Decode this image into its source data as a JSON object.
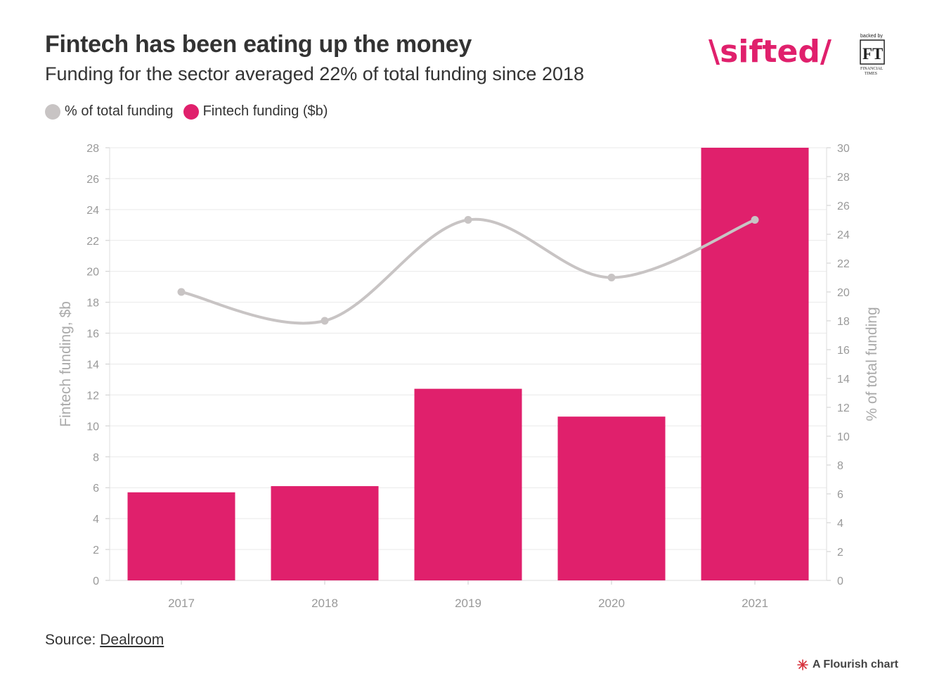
{
  "header": {
    "title": "Fintech has been eating up the money",
    "subtitle": "Funding for the sector averaged 22% of total funding since 2018"
  },
  "brand": {
    "logo_text": "\\sifted/",
    "backed_by": "backed by",
    "ft_mark": "FT",
    "ft_name_line1": "FINANCIAL",
    "ft_name_line2": "TIMES"
  },
  "legend": {
    "items": [
      {
        "label": "% of total funding",
        "color": "#c8c4c4"
      },
      {
        "label": "Fintech funding ($b)",
        "color": "#e0206c"
      }
    ]
  },
  "chart_data": {
    "type": "bar",
    "categories": [
      "2017",
      "2018",
      "2019",
      "2020",
      "2021"
    ],
    "series": [
      {
        "name": "Fintech funding ($b)",
        "type": "bar",
        "axis": "left",
        "color": "#e0206c",
        "values": [
          5.7,
          6.1,
          12.4,
          10.6,
          28
        ]
      },
      {
        "name": "% of total funding",
        "type": "line",
        "axis": "right",
        "color": "#c8c4c4",
        "values": [
          20,
          18,
          25,
          21,
          25
        ]
      }
    ],
    "ylabel": "Fintech funding, $b",
    "ylim": [
      0,
      28
    ],
    "yticks": [
      "0",
      "2",
      "4",
      "6",
      "8",
      "10",
      "12",
      "14",
      "16",
      "18",
      "20",
      "22",
      "24",
      "26",
      "28"
    ],
    "y2label": "% of total funding",
    "y2lim": [
      0,
      30
    ],
    "y2ticks": [
      "0",
      "2",
      "4",
      "6",
      "8",
      "10",
      "12",
      "14",
      "16",
      "18",
      "20",
      "22",
      "24",
      "26",
      "28",
      "30"
    ],
    "grid": true,
    "legend_position": "top-left"
  },
  "footer": {
    "source_prefix": "Source: ",
    "source_link": "Dealroom",
    "credit": "A Flourish chart"
  }
}
